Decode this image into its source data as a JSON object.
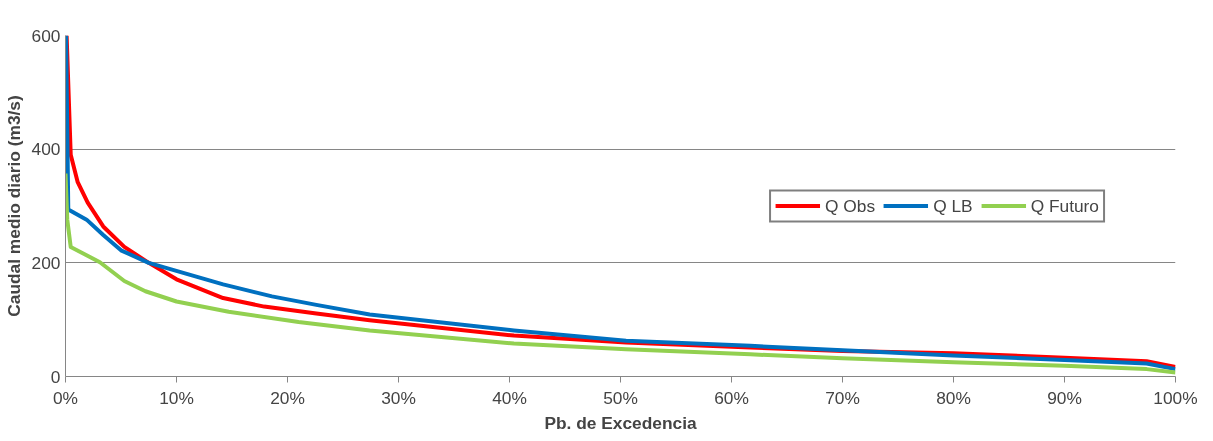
{
  "chart_data": {
    "type": "line",
    "xlabel": "Pb. de Excedencia",
    "ylabel": "Caudal medio diario (m3/s)",
    "xlim": [
      0,
      100
    ],
    "xticks": [
      {
        "value": 0,
        "label": "0%"
      },
      {
        "value": 10,
        "label": "10%"
      },
      {
        "value": 20,
        "label": "20%"
      },
      {
        "value": 30,
        "label": "30%"
      },
      {
        "value": 40,
        "label": "40%"
      },
      {
        "value": 50,
        "label": "50%"
      },
      {
        "value": 60,
        "label": "60%"
      },
      {
        "value": 70,
        "label": "70%"
      },
      {
        "value": 80,
        "label": "80%"
      },
      {
        "value": 90,
        "label": "90%"
      },
      {
        "value": 100,
        "label": "100%"
      }
    ],
    "ylim": [
      0,
      600
    ],
    "yticks": [
      0,
      200,
      400,
      600
    ],
    "grid": "y",
    "legend": "right",
    "marker": "none",
    "line_style": "solid",
    "series": [
      {
        "name": "Q Obs",
        "color": "#ff0000",
        "x": [
          0.1,
          0.47,
          1.1,
          2.0,
          3.4,
          5.3,
          7.5,
          10,
          14.2,
          17.9,
          22.6,
          27.4,
          40.4,
          50.5,
          61.7,
          70,
          80,
          90,
          97.4,
          100
        ],
        "values": [
          600,
          390,
          342,
          306,
          264,
          228,
          200,
          171,
          138,
          123,
          111,
          99,
          72,
          60,
          51,
          45,
          41,
          33,
          27,
          17
        ]
      },
      {
        "name": "Q LB",
        "color": "#0070c0",
        "x": [
          0.05,
          0.25,
          1.9,
          3.4,
          5,
          7.5,
          11,
          14.2,
          18.6,
          22.6,
          27.4,
          40.4,
          50.5,
          61.7,
          70,
          80,
          90,
          97.4,
          100
        ],
        "values": [
          600,
          294,
          276,
          249,
          222,
          200,
          180,
          162,
          141,
          126,
          109,
          81,
          63,
          54,
          46,
          37,
          29,
          23,
          13
        ]
      },
      {
        "name": "Q Futuro",
        "color": "#92d050",
        "x": [
          0,
          0.16,
          0.47,
          3.1,
          5.3,
          7.2,
          10,
          14.7,
          21,
          27.4,
          40.4,
          50.5,
          61.7,
          70,
          80,
          90,
          97.4,
          100
        ],
        "values": [
          357,
          276,
          228,
          201,
          168,
          150,
          132,
          114,
          96,
          81,
          58,
          48,
          39,
          32,
          25,
          19,
          13,
          7
        ]
      }
    ]
  }
}
